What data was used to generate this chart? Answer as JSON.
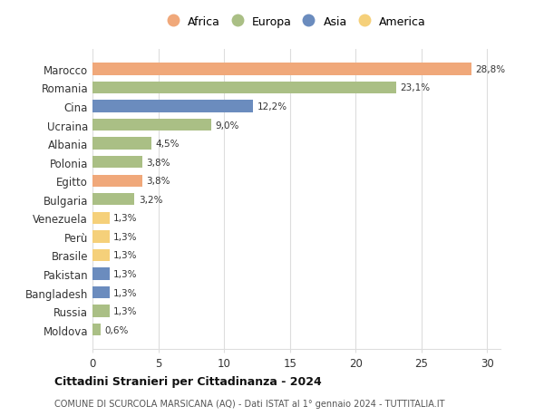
{
  "countries": [
    "Marocco",
    "Romania",
    "Cina",
    "Ucraina",
    "Albania",
    "Polonia",
    "Egitto",
    "Bulgaria",
    "Venezuela",
    "Perù",
    "Brasile",
    "Pakistan",
    "Bangladesh",
    "Russia",
    "Moldova"
  ],
  "values": [
    28.8,
    23.1,
    12.2,
    9.0,
    4.5,
    3.8,
    3.8,
    3.2,
    1.3,
    1.3,
    1.3,
    1.3,
    1.3,
    1.3,
    0.6
  ],
  "labels": [
    "28,8%",
    "23,1%",
    "12,2%",
    "9,0%",
    "4,5%",
    "3,8%",
    "3,8%",
    "3,2%",
    "1,3%",
    "1,3%",
    "1,3%",
    "1,3%",
    "1,3%",
    "1,3%",
    "0,6%"
  ],
  "continents": [
    "Africa",
    "Europa",
    "Asia",
    "Europa",
    "Europa",
    "Europa",
    "Africa",
    "Europa",
    "America",
    "America",
    "America",
    "Asia",
    "Asia",
    "Europa",
    "Europa"
  ],
  "continent_colors": {
    "Africa": "#F0A87A",
    "Europa": "#AABF85",
    "Asia": "#6B8CBE",
    "America": "#F5D07A"
  },
  "legend_order": [
    "Africa",
    "Europa",
    "Asia",
    "America"
  ],
  "xlim": [
    0,
    31
  ],
  "xticks": [
    0,
    5,
    10,
    15,
    20,
    25,
    30
  ],
  "title": "Cittadini Stranieri per Cittadinanza - 2024",
  "subtitle": "COMUNE DI SCURCOLA MARSICANA (AQ) - Dati ISTAT al 1° gennaio 2024 - TUTTITALIA.IT",
  "background_color": "#ffffff",
  "grid_color": "#dddddd",
  "bar_height": 0.65
}
